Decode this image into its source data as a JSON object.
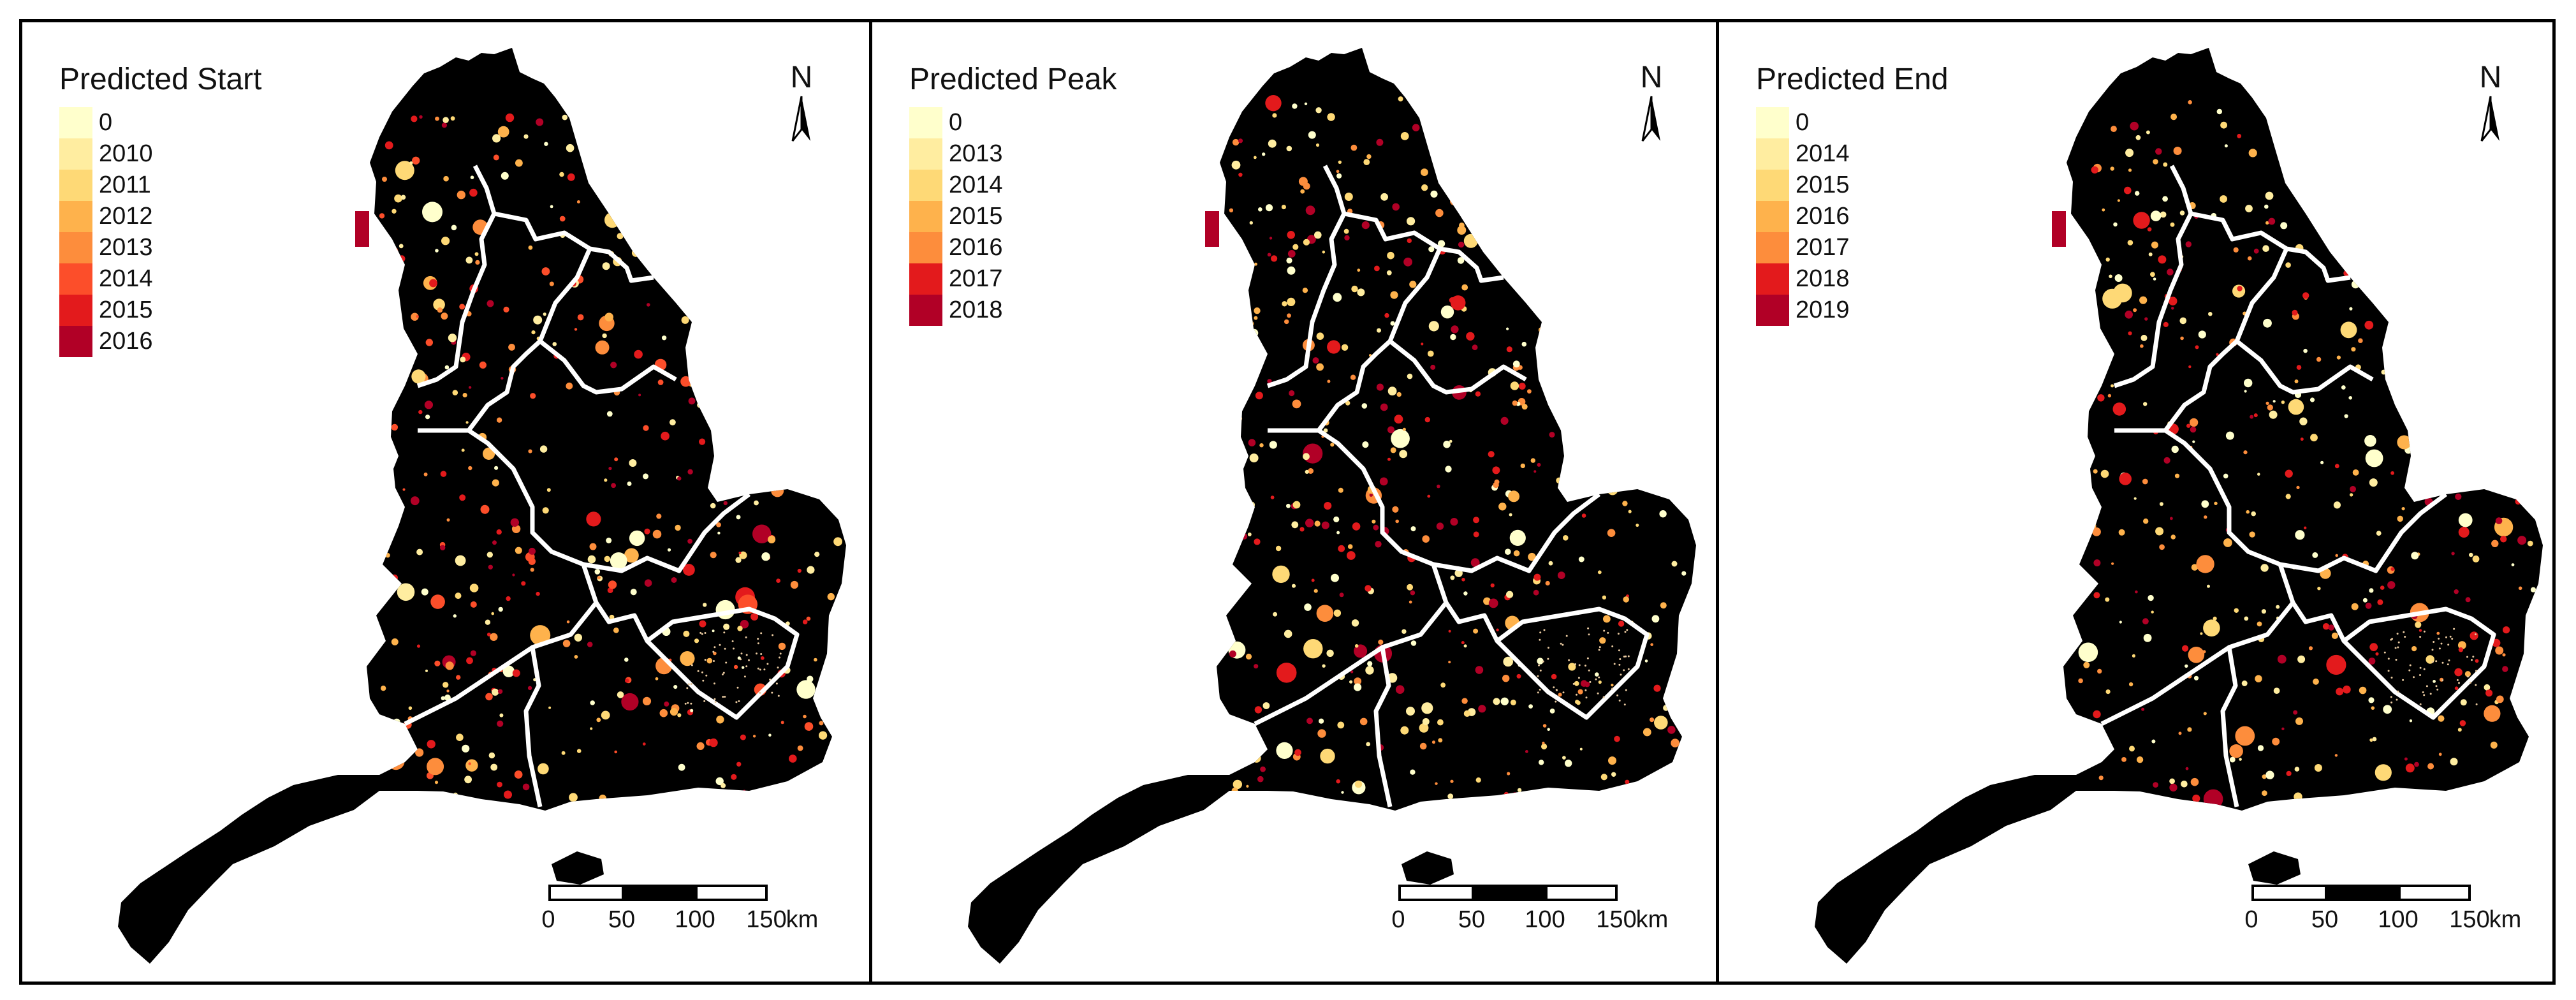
{
  "panels": [
    {
      "id": "start",
      "legend_title": "Predicted Start",
      "legend_items": [
        {
          "label": "0",
          "color": "#ffffcc"
        },
        {
          "label": "2010",
          "color": "#ffeda0"
        },
        {
          "label": "2011",
          "color": "#fed976"
        },
        {
          "label": "2012",
          "color": "#feb24c"
        },
        {
          "label": "2013",
          "color": "#fd8d3c"
        },
        {
          "label": "2014",
          "color": "#fc4e2a"
        },
        {
          "label": "2015",
          "color": "#e31a1c"
        },
        {
          "label": "2016",
          "color": "#b10026"
        }
      ]
    },
    {
      "id": "peak",
      "legend_title": "Predicted Peak",
      "legend_items": [
        {
          "label": "0",
          "color": "#ffffcc"
        },
        {
          "label": "2013",
          "color": "#ffeda0"
        },
        {
          "label": "2014",
          "color": "#fed976"
        },
        {
          "label": "2015",
          "color": "#feb24c"
        },
        {
          "label": "2016",
          "color": "#fd8d3c"
        },
        {
          "label": "2017",
          "color": "#e31a1c"
        },
        {
          "label": "2018",
          "color": "#b10026"
        }
      ]
    },
    {
      "id": "end",
      "legend_title": "Predicted End",
      "legend_items": [
        {
          "label": "0",
          "color": "#ffffcc"
        },
        {
          "label": "2014",
          "color": "#ffeda0"
        },
        {
          "label": "2015",
          "color": "#fed976"
        },
        {
          "label": "2016",
          "color": "#feb24c"
        },
        {
          "label": "2017",
          "color": "#fd8d3c"
        },
        {
          "label": "2018",
          "color": "#e31a1c"
        },
        {
          "label": "2019",
          "color": "#b10026"
        }
      ]
    }
  ],
  "north_arrow": {
    "label": "N",
    "icon": "north-arrow-icon"
  },
  "scale_bar": {
    "ticks": [
      "0",
      "50",
      "100",
      "150"
    ],
    "unit": "km"
  },
  "colors": {
    "land": "#000000",
    "boundary": "#ffffff",
    "frame": "#000000"
  }
}
